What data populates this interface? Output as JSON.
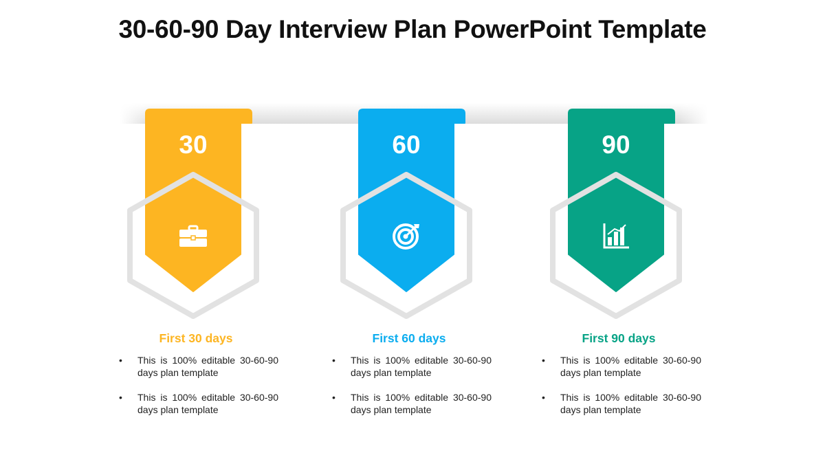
{
  "title": "30-60-90 Day Interview Plan PowerPoint Template",
  "colors": {
    "orange": "#FDB522",
    "blue": "#0BADEF",
    "green": "#07A386",
    "hex_outline": "#E2E2E2"
  },
  "cards": [
    {
      "number": "30",
      "icon": "briefcase-icon",
      "heading": "First 30 days",
      "color": "#FDB522",
      "bullets": [
        "This is 100% editable 30-60-90 days plan template",
        "This is 100% editable 30-60-90 days plan template"
      ]
    },
    {
      "number": "60",
      "icon": "target-icon",
      "heading": "First 60 days",
      "color": "#0BADEF",
      "bullets": [
        "This is 100% editable 30-60-90 days plan template",
        "This is 100% editable 30-60-90 days plan template"
      ]
    },
    {
      "number": "90",
      "icon": "bar-chart-icon",
      "heading": "First 90 days",
      "color": "#07A386",
      "bullets": [
        "This is 100% editable 30-60-90 days plan template",
        "This is 100% editable 30-60-90 days plan template"
      ]
    }
  ]
}
